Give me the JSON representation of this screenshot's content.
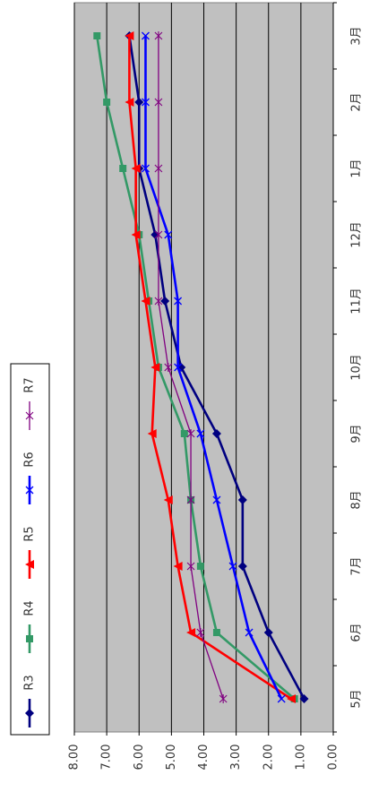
{
  "chart_data": {
    "type": "line",
    "orientation": "rotated",
    "categories": [
      "5月",
      "6月",
      "7月",
      "8月",
      "9月",
      "10月",
      "11月",
      "12月",
      "1月",
      "2月",
      "3月"
    ],
    "series": [
      {
        "name": "R3",
        "color": "#000080",
        "marker": "diamond",
        "values": [
          0.9,
          2.0,
          2.8,
          2.8,
          3.6,
          4.7,
          5.2,
          5.5,
          6.0,
          6.0,
          6.3
        ]
      },
      {
        "name": "R4",
        "color": "#339966",
        "marker": "square",
        "values": [
          1.2,
          3.6,
          4.1,
          4.4,
          4.6,
          5.4,
          5.7,
          6.0,
          6.5,
          7.0,
          7.3
        ]
      },
      {
        "name": "R5",
        "color": "#ff0000",
        "marker": "triangle",
        "values": [
          1.3,
          4.4,
          4.8,
          5.1,
          5.6,
          5.5,
          5.8,
          6.1,
          6.1,
          6.3,
          6.3
        ]
      },
      {
        "name": "R6",
        "color": "#0000ff",
        "marker": "x",
        "values": [
          1.6,
          2.6,
          3.1,
          3.6,
          4.1,
          4.8,
          4.8,
          5.1,
          5.8,
          5.8,
          5.8
        ]
      },
      {
        "name": "R7",
        "color": "#800080",
        "marker": "star",
        "values": [
          3.4,
          4.1,
          4.4,
          4.4,
          4.4,
          5.1,
          5.4,
          5.4,
          5.4,
          5.4,
          5.4
        ]
      }
    ],
    "ylim": [
      0,
      8
    ],
    "yticks": [
      {
        "value": 8,
        "label": "8.00"
      },
      {
        "value": 7,
        "label": "7.00"
      },
      {
        "value": 6,
        "label": "6.00"
      },
      {
        "value": 5,
        "label": "5.00"
      },
      {
        "value": 4,
        "label": "4.00"
      },
      {
        "value": 3,
        "label": "3.00"
      },
      {
        "value": 2,
        "label": "2.00"
      },
      {
        "value": 1,
        "label": "1.00"
      },
      {
        "value": 0,
        "label": "0.00"
      }
    ],
    "grid": true,
    "plot_background": "#c0c0c0"
  }
}
